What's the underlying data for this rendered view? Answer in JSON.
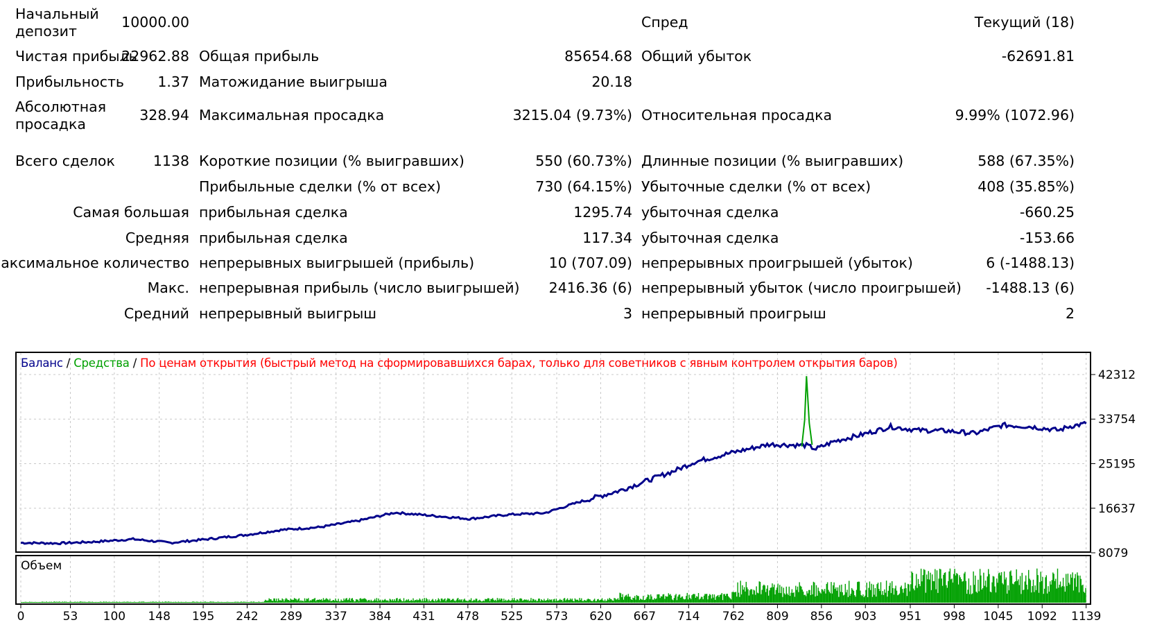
{
  "report": {
    "initial_deposit_label": "Начальный депозит",
    "initial_deposit_value": "10000.00",
    "spread_label": "Спред",
    "spread_value": "Текущий (18)",
    "net_profit_label": "Чистая прибыль",
    "net_profit_value": "22962.88",
    "gross_profit_label": "Общая прибыль",
    "gross_profit_value": "85654.68",
    "gross_loss_label": "Общий убыток",
    "gross_loss_value": "-62691.81",
    "profit_factor_label": "Прибыльность",
    "profit_factor_value": "1.37",
    "expected_payoff_label": "Матожидание выигрыша",
    "expected_payoff_value": "20.18",
    "abs_drawdown_label": "Абсолютная просадка",
    "abs_drawdown_value": "328.94",
    "max_drawdown_label": "Максимальная просадка",
    "max_drawdown_value": "3215.04 (9.73%)",
    "rel_drawdown_label": "Относительная просадка",
    "rel_drawdown_value": "9.99% (1072.96)",
    "total_trades_label": "Всего сделок",
    "total_trades_value": "1138",
    "short_label": "Короткие позиции (% выигравших)",
    "short_value": "550 (60.73%)",
    "long_label": "Длинные позиции (% выигравших)",
    "long_value": "588 (67.35%)",
    "profit_trades_label": "Прибыльные сделки (% от всех)",
    "profit_trades_value": "730 (64.15%)",
    "loss_trades_label": "Убыточные сделки (% от всех)",
    "loss_trades_value": "408 (35.85%)",
    "largest_label": "Самая большая",
    "largest_profit_label": "прибыльная сделка",
    "largest_profit_value": "1295.74",
    "largest_loss_label": "убыточная сделка",
    "largest_loss_value": "-660.25",
    "average_label": "Средняя",
    "average_profit_label": "прибыльная сделка",
    "average_profit_value": "117.34",
    "average_loss_label": "убыточная сделка",
    "average_loss_value": "-153.66",
    "max_count_label": "Максимальное количество",
    "max_consec_wins_label": "непрерывных выигрышей (прибыль)",
    "max_consec_wins_value": "10 (707.09)",
    "max_consec_losses_label": "непрерывных проигрышей (убыток)",
    "max_consec_losses_value": "6 (-1488.13)",
    "maximal_label": "Макс.",
    "max_consec_profit_label": "непрерывная прибыль (число выигрышей)",
    "max_consec_profit_value": "2416.36 (6)",
    "max_consec_loss_label": "непрерывный убыток (число проигрышей)",
    "max_consec_loss_value": "-1488.13 (6)",
    "avg_consec_label": "Средний",
    "avg_consec_wins_label": "непрерывный выигрыш",
    "avg_consec_wins_value": "3",
    "avg_consec_losses_label": "непрерывный проигрыш",
    "avg_consec_losses_value": "2"
  },
  "chart_data": [
    {
      "type": "line",
      "legend": {
        "balance": "Баланс",
        "sep1": " / ",
        "equity": "Средства",
        "sep2": " / ",
        "model": "По ценам открытия (быстрый метод на сформировавшихся барах, только для советников с явным контролем открытия баров)"
      },
      "colors": {
        "balance": "#00008b",
        "equity": "#00a000",
        "model": "#ff0000",
        "grid": "#c8c8c8"
      },
      "ylim": [
        8079,
        45000
      ],
      "yticks": [
        42312,
        33754,
        25195,
        16637,
        8079
      ],
      "ytick_labels": [
        "42312",
        "33754",
        "25195",
        "16637",
        "8079"
      ],
      "xlim": [
        0,
        1140
      ],
      "xticks": [
        0,
        53,
        100,
        148,
        195,
        242,
        289,
        337,
        384,
        431,
        478,
        525,
        573,
        620,
        667,
        714,
        762,
        809,
        856,
        903,
        951,
        998,
        1045,
        1092,
        1139
      ],
      "xtick_labels": [
        "0",
        "53",
        "100",
        "148",
        "195",
        "242",
        "289",
        "337",
        "384",
        "431",
        "478",
        "525",
        "573",
        "620",
        "667",
        "714",
        "762",
        "809",
        "856",
        "903",
        "951",
        "998",
        "1045",
        "1092",
        "1139"
      ],
      "series": [
        {
          "name": "Баланс",
          "x": [
            0,
            40,
            80,
            120,
            160,
            200,
            240,
            280,
            320,
            360,
            400,
            440,
            480,
            520,
            560,
            600,
            640,
            680,
            700,
            720,
            760,
            800,
            840,
            850,
            870,
            900,
            930,
            960,
            990,
            1020,
            1050,
            1080,
            1110,
            1120,
            1139
          ],
          "y": [
            10000,
            9900,
            10200,
            10700,
            10000,
            10700,
            11500,
            12500,
            13000,
            14200,
            15800,
            15200,
            14600,
            15400,
            15700,
            18000,
            20000,
            22600,
            23900,
            25500,
            27300,
            28900,
            28700,
            28000,
            29500,
            30800,
            32300,
            31600,
            31500,
            31000,
            32600,
            32300,
            31600,
            32300,
            32900
          ]
        },
        {
          "name": "Средства",
          "x": [
            835,
            838,
            840,
            843,
            846
          ],
          "y": [
            28500,
            33500,
            42000,
            33000,
            28800
          ]
        }
      ]
    },
    {
      "type": "bar",
      "title": "Объем",
      "x_range": [
        0,
        1139
      ],
      "color": "#00a000",
      "profile": [
        {
          "from": 0,
          "to": 260,
          "level": 0.03
        },
        {
          "from": 260,
          "to": 640,
          "level": 0.12
        },
        {
          "from": 640,
          "to": 760,
          "level": 0.25
        },
        {
          "from": 760,
          "to": 950,
          "level": 0.55
        },
        {
          "from": 950,
          "to": 1139,
          "level": 0.85
        }
      ]
    }
  ]
}
